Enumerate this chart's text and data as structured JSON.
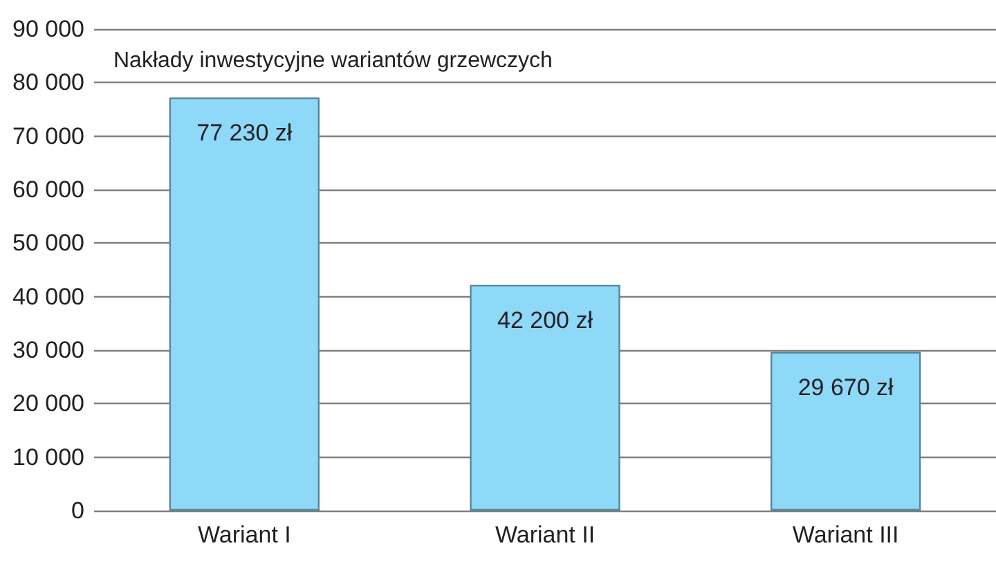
{
  "chart_data": {
    "type": "bar",
    "title": "Nakłady inwestycyjne wariantów grzewczych",
    "categories": [
      "Wariant I",
      "Wariant II",
      "Wariant III"
    ],
    "values": [
      77230,
      42200,
      29670
    ],
    "value_labels": [
      "77 230 zł",
      "42 200 zł",
      "29 670 zł"
    ],
    "color": "#8ed8f8",
    "ylim": [
      0,
      90000
    ],
    "yticks": [
      0,
      {
        "value": 10000,
        "label": "10 000"
      },
      {
        "value": 20000,
        "label": "20 000"
      },
      {
        "value": 30000,
        "label": "30 000"
      },
      {
        "value": 40000,
        "label": "40 000"
      },
      {
        "value": 50000,
        "label": "50 000"
      },
      {
        "value": 60000,
        "label": "60 000"
      },
      {
        "value": 70000,
        "label": "70 000"
      },
      {
        "value": 80000,
        "label": "80 000"
      },
      {
        "value": 90000,
        "label": "90 000"
      }
    ],
    "grid": "y"
  }
}
